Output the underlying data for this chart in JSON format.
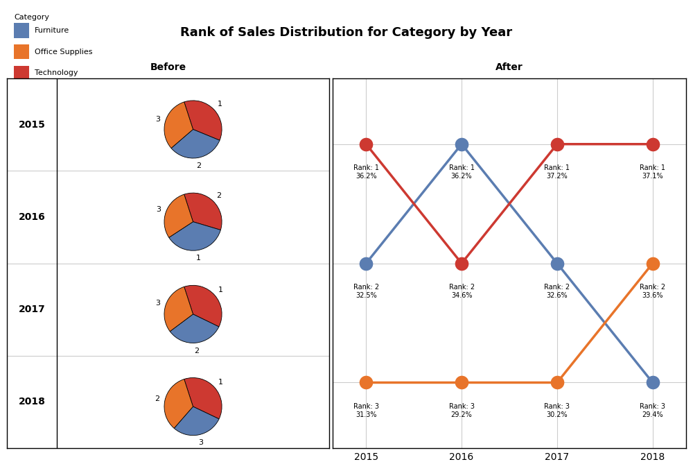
{
  "title": "Rank of Sales Distribution for Category by Year",
  "years": [
    2015,
    2016,
    2017,
    2018
  ],
  "categories": [
    "Furniture",
    "Office Supplies",
    "Technology"
  ],
  "colors": {
    "Furniture": "#5B7DB1",
    "Office Supplies": "#E8742A",
    "Technology": "#CD3931"
  },
  "pie_data": {
    "2015": {
      "Technology": 36.2,
      "Furniture": 32.5,
      "Office Supplies": 31.3
    },
    "2016": {
      "Technology": 34.6,
      "Furniture": 36.2,
      "Office Supplies": 29.2
    },
    "2017": {
      "Technology": 37.2,
      "Furniture": 32.6,
      "Office Supplies": 30.2
    },
    "2018": {
      "Technology": 37.1,
      "Furniture": 29.4,
      "Office Supplies": 33.6
    }
  },
  "rank_data": {
    "Furniture": {
      "2015": {
        "rank": 2,
        "pct": "32.5%"
      },
      "2016": {
        "rank": 1,
        "pct": "36.2%"
      },
      "2017": {
        "rank": 2,
        "pct": "32.6%"
      },
      "2018": {
        "rank": 3,
        "pct": "29.4%"
      }
    },
    "Office Supplies": {
      "2015": {
        "rank": 3,
        "pct": "31.3%"
      },
      "2016": {
        "rank": 3,
        "pct": "29.2%"
      },
      "2017": {
        "rank": 3,
        "pct": "30.2%"
      },
      "2018": {
        "rank": 2,
        "pct": "33.6%"
      }
    },
    "Technology": {
      "2015": {
        "rank": 1,
        "pct": "36.2%"
      },
      "2016": {
        "rank": 2,
        "pct": "34.6%"
      },
      "2017": {
        "rank": 1,
        "pct": "37.2%"
      },
      "2018": {
        "rank": 1,
        "pct": "37.1%"
      }
    }
  },
  "pie_slice_order": [
    "Technology",
    "Furniture",
    "Office Supplies"
  ],
  "pie_startangle": 108,
  "legend_items": [
    "Furniture",
    "Office Supplies",
    "Technology"
  ],
  "before_label": "Before",
  "after_label": "After",
  "fig_width": 10.0,
  "fig_height": 6.66,
  "background_color": "#ffffff",
  "grid_color": "#cccccc",
  "border_color": "#000000",
  "label_fontsize": 10,
  "title_fontsize": 13,
  "legend_fontsize": 8,
  "pie_label_fontsize": 8,
  "bump_label_fontsize": 7,
  "dot_size": 200,
  "line_width": 2.5
}
